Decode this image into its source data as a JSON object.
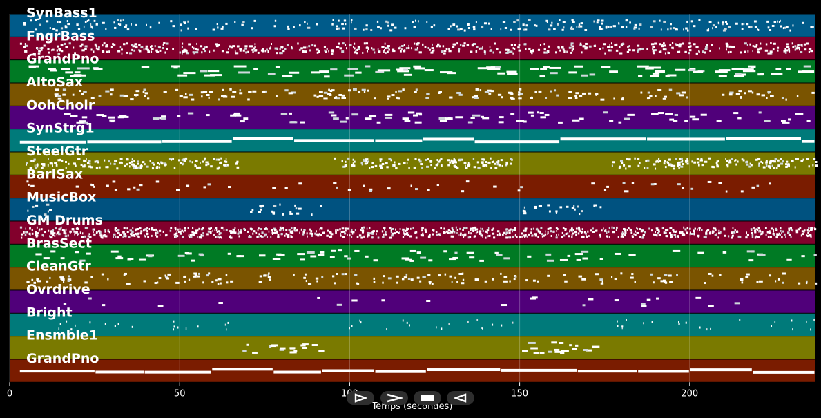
{
  "player": {
    "xlabel": "Temps (secondes)",
    "x_ticks": [
      0,
      50,
      100,
      150,
      200
    ],
    "x_range": [
      0,
      237
    ],
    "grid": true,
    "controls": [
      {
        "icon": "play-outline-icon"
      },
      {
        "icon": "fast-forward-icon"
      },
      {
        "icon": "stop-icon"
      },
      {
        "icon": "rewind-icon"
      }
    ],
    "tracks": [
      {
        "name": "SynBass1",
        "color": "#005b8a",
        "style": "notes",
        "sections": [
          [
            4,
            237
          ]
        ],
        "density": 1.1,
        "size": 0.6
      },
      {
        "name": "FngrBass",
        "color": "#82002c",
        "style": "notes",
        "sections": [
          [
            3,
            237
          ]
        ],
        "density": 2.2,
        "size": 0.6
      },
      {
        "name": "GrandPno",
        "color": "#007a24",
        "style": "notes",
        "sections": [
          [
            3,
            237
          ]
        ],
        "density": 0.45,
        "size": 2.5
      },
      {
        "name": "AltoSax",
        "color": "#7a5400",
        "style": "notes",
        "sections": [
          [
            13,
            237
          ]
        ],
        "density": 0.8,
        "size": 0.9
      },
      {
        "name": "OohChoir",
        "color": "#50007a",
        "style": "notes",
        "sections": [
          [
            14,
            237
          ]
        ],
        "density": 0.45,
        "size": 1.6
      },
      {
        "name": "SynStrg1",
        "color": "#007a7a",
        "style": "long",
        "sections": [
          [
            3,
            237
          ]
        ],
        "density": 0.1,
        "size": 14
      },
      {
        "name": "SteelGtr",
        "color": "#7a7a00",
        "style": "notes",
        "sections": [
          [
            4,
            67
          ],
          [
            95,
            148
          ],
          [
            176,
            237
          ]
        ],
        "density": 2.4,
        "size": 0.6
      },
      {
        "name": "BariSax",
        "color": "#7a1c00",
        "style": "notes",
        "sections": [
          [
            4,
            237
          ]
        ],
        "density": 0.25,
        "size": 0.8
      },
      {
        "name": "MusicBox",
        "color": "#005280",
        "style": "notes",
        "sections": [
          [
            4,
            12
          ],
          [
            70,
            93
          ],
          [
            149,
            176
          ]
        ],
        "density": 0.9,
        "size": 0.7
      },
      {
        "name": "GM Drums",
        "color": "#82002c",
        "style": "notes",
        "sections": [
          [
            3,
            237
          ]
        ],
        "density": 4.0,
        "size": 0.5
      },
      {
        "name": "BrasSect",
        "color": "#007a24",
        "style": "notes",
        "sections": [
          [
            3,
            237
          ]
        ],
        "density": 0.35,
        "size": 1.6
      },
      {
        "name": "CleanGtr",
        "color": "#7a5400",
        "style": "notes",
        "sections": [
          [
            4,
            237
          ]
        ],
        "density": 0.7,
        "size": 0.8
      },
      {
        "name": "Ovrdrive",
        "color": "#50007a",
        "style": "notes",
        "sections": [
          [
            12,
            237
          ]
        ],
        "density": 0.1,
        "size": 1.2
      },
      {
        "name": "Bright",
        "color": "#007a7a",
        "style": "notes",
        "sections": [
          [
            14,
            67
          ],
          [
            96,
            148
          ],
          [
            177,
            237
          ]
        ],
        "density": 0.35,
        "size": 0.3
      },
      {
        "name": "Ensmble1",
        "color": "#7a7a00",
        "style": "notes",
        "sections": [
          [
            67,
            93
          ],
          [
            149,
            175
          ]
        ],
        "density": 0.7,
        "size": 1.5
      },
      {
        "name": "GrandPno",
        "color": "#7a1c00",
        "style": "long",
        "sections": [
          [
            3,
            237
          ]
        ],
        "density": 0.1,
        "size": 12
      }
    ]
  }
}
